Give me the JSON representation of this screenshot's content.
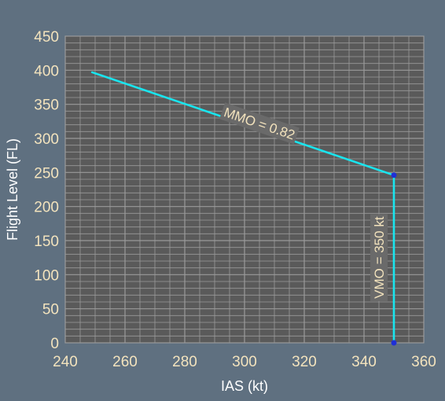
{
  "chart_data": {
    "type": "line",
    "title": "",
    "xlabel": "IAS (kt)",
    "ylabel": "Flight Level (FL)",
    "xlim": [
      240,
      360
    ],
    "ylim": [
      0,
      450
    ],
    "x_ticks": [
      240,
      260,
      280,
      300,
      320,
      340,
      360
    ],
    "y_ticks": [
      0,
      50,
      100,
      150,
      200,
      250,
      300,
      350,
      400,
      450
    ],
    "grid": true,
    "legend": "none",
    "series": [
      {
        "name": "MMO = 0.82",
        "x": [
          249,
          350
        ],
        "y": [
          397,
          246
        ]
      },
      {
        "name": "VMO = 350 kt",
        "x": [
          350,
          350
        ],
        "y": [
          246,
          0
        ]
      }
    ],
    "markers": [
      {
        "x": 350,
        "y": 246
      },
      {
        "x": 350,
        "y": 0
      }
    ],
    "annotations": [
      {
        "text": "MMO = 0.82",
        "x": 305,
        "y": 322,
        "rotation": "along-line"
      },
      {
        "text": "VMO = 350 kt",
        "x": 345,
        "y": 125,
        "rotation": "vertical"
      }
    ],
    "colors": {
      "background": "#5f7080",
      "plot_area": "#5a5a5a",
      "grid": "#9a9a9a",
      "line": "#19e5ee",
      "marker": "#1f2fd6",
      "tick_label": "#f3e3bd",
      "axis_title": "#ffffff",
      "label_box": "#6a6a6a",
      "label_text": "#f3e3bd"
    }
  }
}
